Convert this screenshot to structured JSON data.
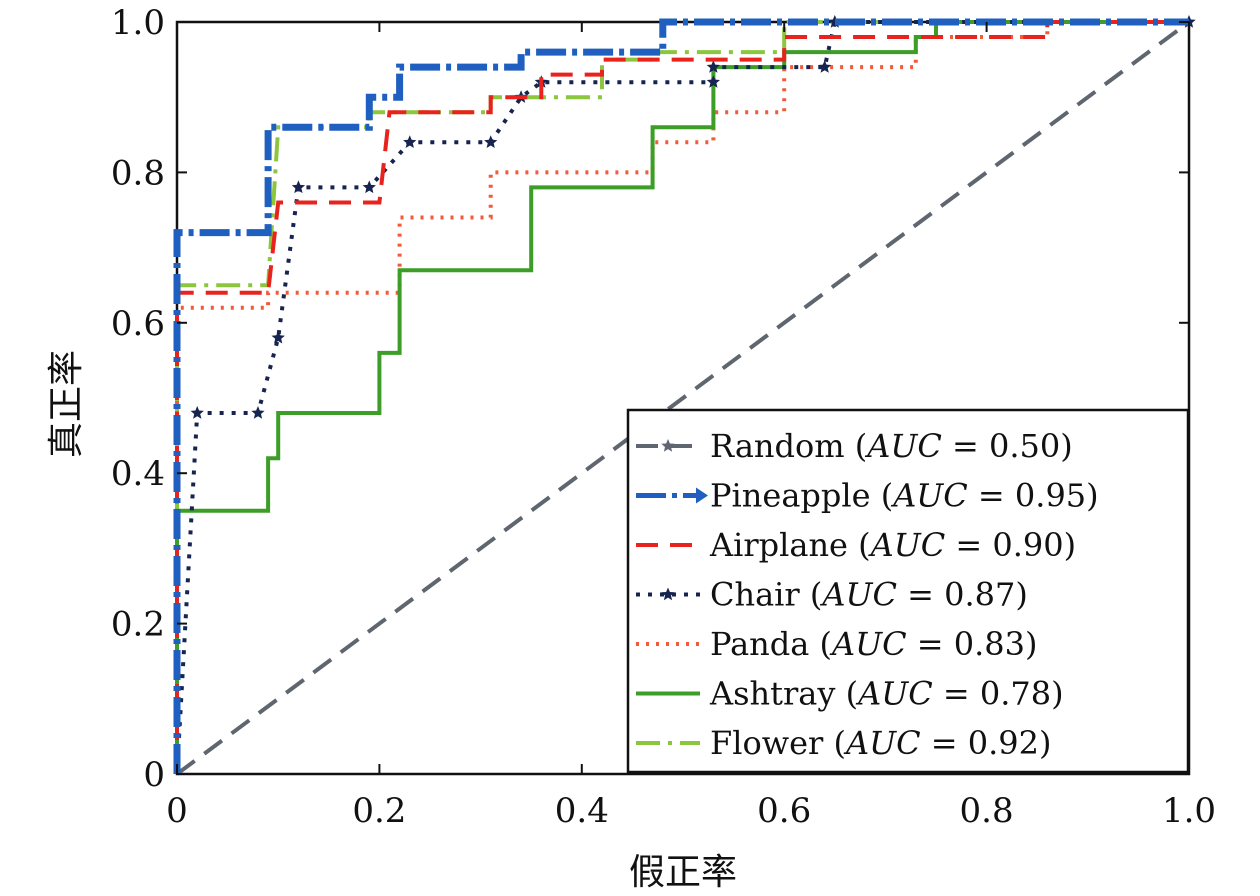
{
  "chart_data": {
    "type": "line",
    "title": "",
    "xlabel": "假正率",
    "ylabel": "真正率",
    "xlim": [
      0,
      1
    ],
    "ylim": [
      0,
      1
    ],
    "x_ticks": [
      "0",
      "0.2",
      "0.4",
      "0.6",
      "0.8",
      "1.0"
    ],
    "y_ticks": [
      "0",
      "0.2",
      "0.4",
      "0.6",
      "0.8",
      "1.0"
    ],
    "grid": false,
    "legend_position": "bottom-right",
    "series": [
      {
        "name": "Random (AUC = 0.50)",
        "color": "#5f6670",
        "style": "dashed",
        "points": [
          [
            0,
            0
          ],
          [
            1,
            1
          ]
        ]
      },
      {
        "name": "Pineapple (AUC = 0.95)",
        "color": "#1f5fbf",
        "style": "dash-dot-thick",
        "points": [
          [
            0,
            0
          ],
          [
            0,
            0.72
          ],
          [
            0.09,
            0.72
          ],
          [
            0.09,
            0.86
          ],
          [
            0.19,
            0.86
          ],
          [
            0.19,
            0.9
          ],
          [
            0.22,
            0.9
          ],
          [
            0.22,
            0.94
          ],
          [
            0.34,
            0.94
          ],
          [
            0.34,
            0.96
          ],
          [
            0.48,
            0.96
          ],
          [
            0.48,
            1.0
          ],
          [
            1.0,
            1.0
          ]
        ]
      },
      {
        "name": "Airplane (AUC = 0.90)",
        "color": "#e8231e",
        "style": "dashed",
        "points": [
          [
            0,
            0
          ],
          [
            0,
            0.64
          ],
          [
            0.09,
            0.64
          ],
          [
            0.1,
            0.76
          ],
          [
            0.2,
            0.76
          ],
          [
            0.21,
            0.88
          ],
          [
            0.31,
            0.88
          ],
          [
            0.31,
            0.9
          ],
          [
            0.36,
            0.9
          ],
          [
            0.36,
            0.93
          ],
          [
            0.42,
            0.93
          ],
          [
            0.42,
            0.95
          ],
          [
            0.6,
            0.95
          ],
          [
            0.6,
            0.98
          ],
          [
            0.86,
            0.98
          ],
          [
            0.86,
            1.0
          ],
          [
            1.0,
            1.0
          ]
        ]
      },
      {
        "name": "Chair (AUC = 0.87)",
        "color": "#16244f",
        "style": "dotted-star",
        "points": [
          [
            0,
            0
          ],
          [
            0.02,
            0.48
          ],
          [
            0.08,
            0.48
          ],
          [
            0.1,
            0.58
          ],
          [
            0.12,
            0.78
          ],
          [
            0.19,
            0.78
          ],
          [
            0.23,
            0.84
          ],
          [
            0.31,
            0.84
          ],
          [
            0.34,
            0.9
          ],
          [
            0.36,
            0.92
          ],
          [
            0.53,
            0.92
          ],
          [
            0.53,
            0.94
          ],
          [
            0.64,
            0.94
          ],
          [
            0.65,
            1.0
          ],
          [
            1.0,
            1.0
          ]
        ]
      },
      {
        "name": "Panda (AUC = 0.83)",
        "color": "#f4593a",
        "style": "dotted",
        "points": [
          [
            0,
            0
          ],
          [
            0,
            0.62
          ],
          [
            0.09,
            0.62
          ],
          [
            0.09,
            0.64
          ],
          [
            0.22,
            0.64
          ],
          [
            0.22,
            0.74
          ],
          [
            0.31,
            0.74
          ],
          [
            0.31,
            0.8
          ],
          [
            0.47,
            0.8
          ],
          [
            0.47,
            0.84
          ],
          [
            0.53,
            0.84
          ],
          [
            0.53,
            0.88
          ],
          [
            0.6,
            0.88
          ],
          [
            0.6,
            0.94
          ],
          [
            0.73,
            0.94
          ],
          [
            0.73,
            0.98
          ],
          [
            0.86,
            0.98
          ],
          [
            0.86,
            1.0
          ],
          [
            1.0,
            1.0
          ]
        ]
      },
      {
        "name": "Ashtray (AUC = 0.78)",
        "color": "#3c9e26",
        "style": "solid",
        "points": [
          [
            0,
            0
          ],
          [
            0,
            0.35
          ],
          [
            0.09,
            0.35
          ],
          [
            0.09,
            0.42
          ],
          [
            0.1,
            0.42
          ],
          [
            0.1,
            0.48
          ],
          [
            0.2,
            0.48
          ],
          [
            0.2,
            0.56
          ],
          [
            0.22,
            0.56
          ],
          [
            0.22,
            0.67
          ],
          [
            0.35,
            0.67
          ],
          [
            0.35,
            0.78
          ],
          [
            0.47,
            0.78
          ],
          [
            0.47,
            0.86
          ],
          [
            0.53,
            0.86
          ],
          [
            0.53,
            0.94
          ],
          [
            0.6,
            0.94
          ],
          [
            0.6,
            0.96
          ],
          [
            0.73,
            0.96
          ],
          [
            0.73,
            0.98
          ],
          [
            0.75,
            0.98
          ],
          [
            0.75,
            1.0
          ],
          [
            1.0,
            1.0
          ]
        ]
      },
      {
        "name": "Flower (AUC = 0.92)",
        "color": "#8cc63f",
        "style": "dash-dot",
        "points": [
          [
            0,
            0
          ],
          [
            0,
            0.65
          ],
          [
            0.09,
            0.65
          ],
          [
            0.1,
            0.86
          ],
          [
            0.19,
            0.86
          ],
          [
            0.19,
            0.88
          ],
          [
            0.31,
            0.88
          ],
          [
            0.31,
            0.9
          ],
          [
            0.42,
            0.9
          ],
          [
            0.42,
            0.95
          ],
          [
            0.47,
            0.95
          ],
          [
            0.47,
            0.96
          ],
          [
            0.6,
            0.96
          ],
          [
            0.6,
            1.0
          ],
          [
            1.0,
            1.0
          ]
        ]
      }
    ],
    "legend_entries": [
      {
        "name": "Random",
        "auc": "0.50"
      },
      {
        "name": "Pineapple",
        "auc": "0.95"
      },
      {
        "name": "Airplane",
        "auc": "0.90"
      },
      {
        "name": "Chair",
        "auc": "0.87"
      },
      {
        "name": "Panda",
        "auc": "0.83"
      },
      {
        "name": "Ashtray",
        "auc": "0.78"
      },
      {
        "name": "Flower",
        "auc": "0.92"
      }
    ]
  }
}
